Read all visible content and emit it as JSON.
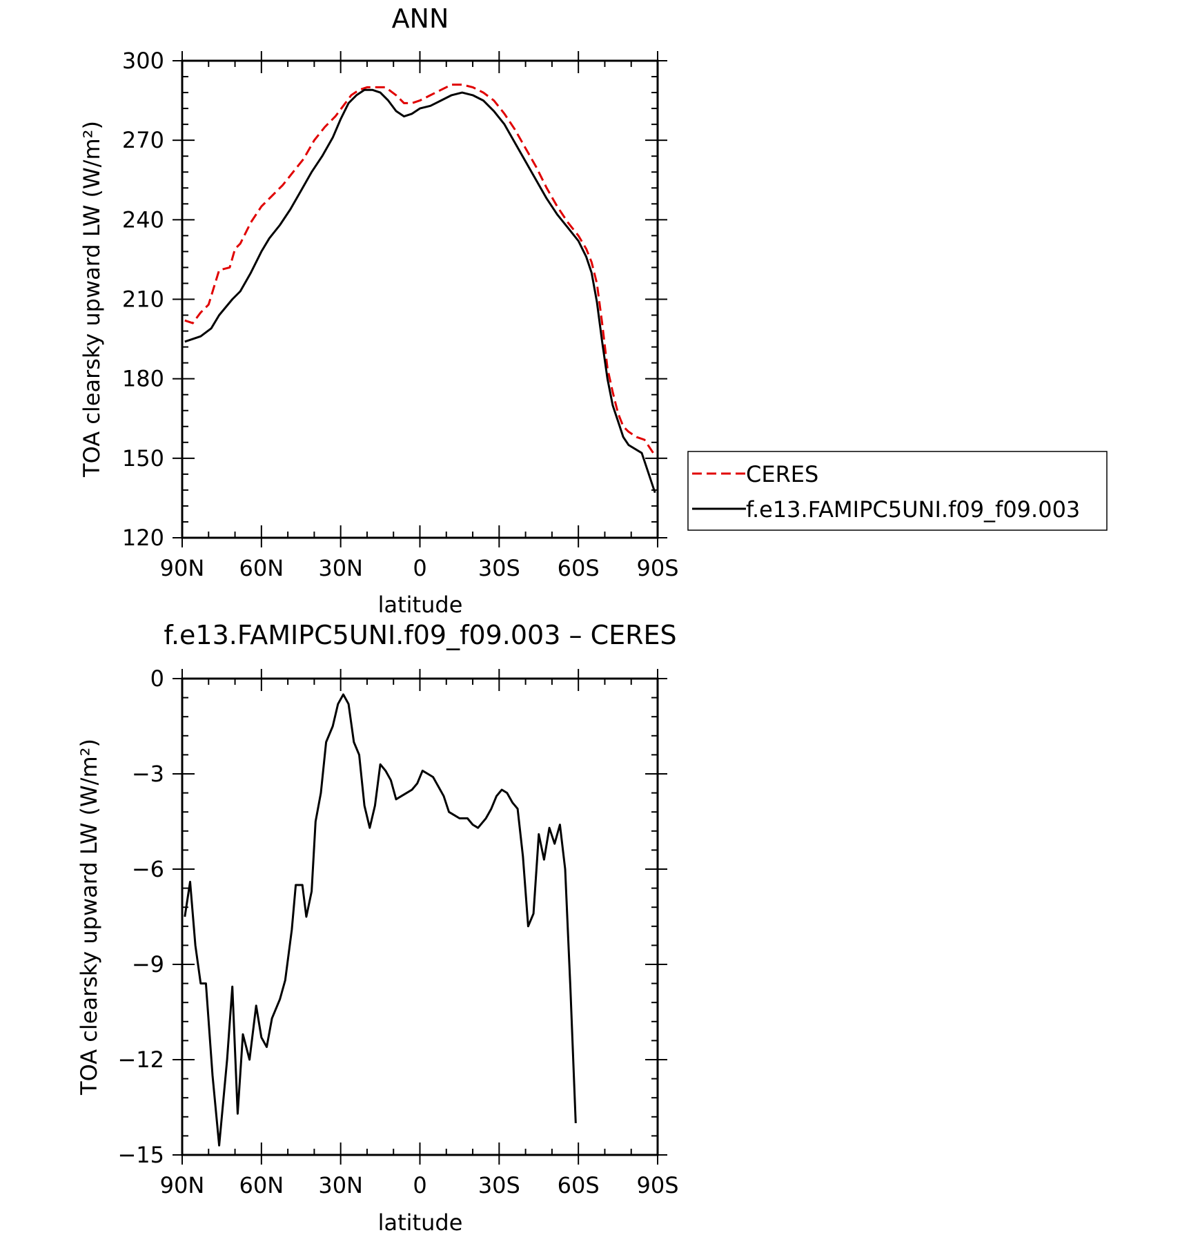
{
  "chart_data": [
    {
      "type": "line",
      "title": "ANN",
      "xlabel": "latitude",
      "ylabel": "TOA clearsky upward LW (W/m²)",
      "xlim": [
        90,
        -90
      ],
      "ylim": [
        120,
        300
      ],
      "x_ticks": [
        {
          "value": 90,
          "label": "90N"
        },
        {
          "value": 60,
          "label": "60N"
        },
        {
          "value": 30,
          "label": "30N"
        },
        {
          "value": 0,
          "label": "0"
        },
        {
          "value": -30,
          "label": "30S"
        },
        {
          "value": -60,
          "label": "60S"
        },
        {
          "value": -90,
          "label": "90S"
        }
      ],
      "y_ticks": [
        {
          "value": 300,
          "label": "300"
        },
        {
          "value": 270,
          "label": "270"
        },
        {
          "value": 240,
          "label": "240"
        },
        {
          "value": 210,
          "label": "210"
        },
        {
          "value": 180,
          "label": "180"
        },
        {
          "value": 150,
          "label": "150"
        },
        {
          "value": 120,
          "label": "120"
        }
      ],
      "legend": {
        "placement": "right",
        "entries": [
          "CERES",
          "f.e13.FAMIPC5UNI.f09_f09.003"
        ]
      },
      "series": [
        {
          "name": "CERES",
          "color": "#e00000",
          "dash": true,
          "points": [
            [
              89,
              202
            ],
            [
              86,
              201
            ],
            [
              83,
              205
            ],
            [
              80,
              208
            ],
            [
              76,
              221
            ],
            [
              72,
              222
            ],
            [
              70,
              229
            ],
            [
              68,
              231
            ],
            [
              64,
              239
            ],
            [
              60,
              245
            ],
            [
              56,
              249
            ],
            [
              52,
              253
            ],
            [
              48,
              258
            ],
            [
              44,
              263
            ],
            [
              40,
              270
            ],
            [
              36,
              275
            ],
            [
              32,
              279
            ],
            [
              29,
              283
            ],
            [
              26,
              287
            ],
            [
              23,
              289
            ],
            [
              20,
              290
            ],
            [
              16,
              290
            ],
            [
              13,
              290
            ],
            [
              9,
              287
            ],
            [
              6,
              284
            ],
            [
              3,
              284
            ],
            [
              0,
              285
            ],
            [
              -4,
              287
            ],
            [
              -8,
              289
            ],
            [
              -12,
              291
            ],
            [
              -16,
              291
            ],
            [
              -20,
              290
            ],
            [
              -24,
              288
            ],
            [
              -28,
              285
            ],
            [
              -32,
              280
            ],
            [
              -36,
              274
            ],
            [
              -40,
              267
            ],
            [
              -44,
              260
            ],
            [
              -48,
              252
            ],
            [
              -52,
              245
            ],
            [
              -56,
              239
            ],
            [
              -60,
              234
            ],
            [
              -63,
              229
            ],
            [
              -65,
              224
            ],
            [
              -67,
              216
            ],
            [
              -69,
              201
            ],
            [
              -71,
              184
            ],
            [
              -73,
              175
            ],
            [
              -75,
              167
            ],
            [
              -77,
              162
            ],
            [
              -79,
              160
            ],
            [
              -82,
              158
            ],
            [
              -85,
              157
            ],
            [
              -89,
              151
            ]
          ]
        },
        {
          "name": "f.e13.FAMIPC5UNI.f09_f09.003",
          "color": "#000000",
          "dash": false,
          "points": [
            [
              89,
              194
            ],
            [
              83,
              196
            ],
            [
              79,
              199
            ],
            [
              76,
              204
            ],
            [
              71,
              210
            ],
            [
              68,
              213
            ],
            [
              64,
              220
            ],
            [
              60,
              228
            ],
            [
              57,
              233
            ],
            [
              53,
              238
            ],
            [
              49,
              244
            ],
            [
              45,
              251
            ],
            [
              41,
              258
            ],
            [
              37,
              264
            ],
            [
              33,
              271
            ],
            [
              30,
              278
            ],
            [
              27,
              284
            ],
            [
              24,
              287
            ],
            [
              21,
              289
            ],
            [
              18,
              289
            ],
            [
              15,
              288
            ],
            [
              12,
              285
            ],
            [
              9,
              281
            ],
            [
              6,
              279
            ],
            [
              3,
              280
            ],
            [
              0,
              282
            ],
            [
              -4,
              283
            ],
            [
              -8,
              285
            ],
            [
              -12,
              287
            ],
            [
              -16,
              288
            ],
            [
              -20,
              287
            ],
            [
              -24,
              285
            ],
            [
              -28,
              281
            ],
            [
              -32,
              276
            ],
            [
              -36,
              269
            ],
            [
              -40,
              262
            ],
            [
              -44,
              255
            ],
            [
              -48,
              248
            ],
            [
              -52,
              242
            ],
            [
              -56,
              237
            ],
            [
              -60,
              232
            ],
            [
              -63,
              226
            ],
            [
              -65,
              220
            ],
            [
              -67,
              209
            ],
            [
              -69,
              194
            ],
            [
              -71,
              180
            ],
            [
              -73,
              170
            ],
            [
              -75,
              164
            ],
            [
              -77,
              158
            ],
            [
              -79,
              155
            ],
            [
              -84,
              152
            ],
            [
              -89,
              137
            ]
          ]
        }
      ]
    },
    {
      "type": "line",
      "title": "f.e13.FAMIPC5UNI.f09_f09.003 – CERES",
      "xlabel": "latitude",
      "ylabel": "TOA clearsky upward LW (W/m²)",
      "xlim": [
        90,
        -90
      ],
      "ylim": [
        -15,
        0
      ],
      "x_ticks": [
        {
          "value": 90,
          "label": "90N"
        },
        {
          "value": 60,
          "label": "60N"
        },
        {
          "value": 30,
          "label": "30N"
        },
        {
          "value": 0,
          "label": "0"
        },
        {
          "value": -30,
          "label": "30S"
        },
        {
          "value": -60,
          "label": "60S"
        },
        {
          "value": -90,
          "label": "90S"
        }
      ],
      "y_ticks": [
        {
          "value": 0,
          "label": "0"
        },
        {
          "value": -3,
          "label": "−3"
        },
        {
          "value": -6,
          "label": "−6"
        },
        {
          "value": -9,
          "label": "−9"
        },
        {
          "value": -12,
          "label": "−12"
        },
        {
          "value": -15,
          "label": "−15"
        }
      ],
      "series": [
        {
          "color": "#000000",
          "dash": false,
          "points": [
            [
              89,
              -7.5
            ],
            [
              87,
              -6.4
            ],
            [
              85,
              -8.4
            ],
            [
              83,
              -9.6
            ],
            [
              81,
              -9.6
            ],
            [
              78.5,
              -12.5
            ],
            [
              76,
              -14.7
            ],
            [
              73,
              -12.0
            ],
            [
              71,
              -9.7
            ],
            [
              69,
              -13.7
            ],
            [
              67,
              -11.2
            ],
            [
              64.5,
              -12.0
            ],
            [
              62,
              -10.3
            ],
            [
              60,
              -11.3
            ],
            [
              58,
              -11.6
            ],
            [
              56,
              -10.7
            ],
            [
              53,
              -10.1
            ],
            [
              51,
              -9.5
            ],
            [
              48.5,
              -7.9
            ],
            [
              47,
              -6.5
            ],
            [
              44.5,
              -6.5
            ],
            [
              43,
              -7.5
            ],
            [
              41,
              -6.7
            ],
            [
              39.5,
              -4.5
            ],
            [
              37.5,
              -3.6
            ],
            [
              35.5,
              -2.0
            ],
            [
              33,
              -1.5
            ],
            [
              31,
              -0.8
            ],
            [
              29,
              -0.5
            ],
            [
              27,
              -0.8
            ],
            [
              25,
              -2.0
            ],
            [
              23,
              -2.4
            ],
            [
              21,
              -4.0
            ],
            [
              19,
              -4.7
            ],
            [
              17,
              -4.0
            ],
            [
              15,
              -2.7
            ],
            [
              13,
              -2.9
            ],
            [
              11,
              -3.2
            ],
            [
              9,
              -3.8
            ],
            [
              7,
              -3.7
            ],
            [
              5,
              -3.6
            ],
            [
              3,
              -3.5
            ],
            [
              1,
              -3.3
            ],
            [
              -1,
              -2.9
            ],
            [
              -3,
              -3.0
            ],
            [
              -5,
              -3.1
            ],
            [
              -7,
              -3.4
            ],
            [
              -9,
              -3.7
            ],
            [
              -11,
              -4.2
            ],
            [
              -13,
              -4.3
            ],
            [
              -15,
              -4.4
            ],
            [
              -18,
              -4.4
            ],
            [
              -20,
              -4.6
            ],
            [
              -22,
              -4.7
            ],
            [
              -25,
              -4.4
            ],
            [
              -27,
              -4.1
            ],
            [
              -29,
              -3.7
            ],
            [
              -31,
              -3.5
            ],
            [
              -33,
              -3.6
            ],
            [
              -35,
              -3.9
            ],
            [
              -37,
              -4.1
            ],
            [
              -39,
              -5.6
            ],
            [
              -41,
              -7.8
            ],
            [
              -43,
              -7.4
            ],
            [
              -45,
              -4.9
            ],
            [
              -47,
              -5.7
            ],
            [
              -49,
              -4.7
            ],
            [
              -51,
              -5.2
            ],
            [
              -53,
              -4.6
            ],
            [
              -55,
              -6.0
            ],
            [
              -57,
              -9.8
            ],
            [
              -59,
              -14.0
            ]
          ]
        }
      ]
    }
  ]
}
